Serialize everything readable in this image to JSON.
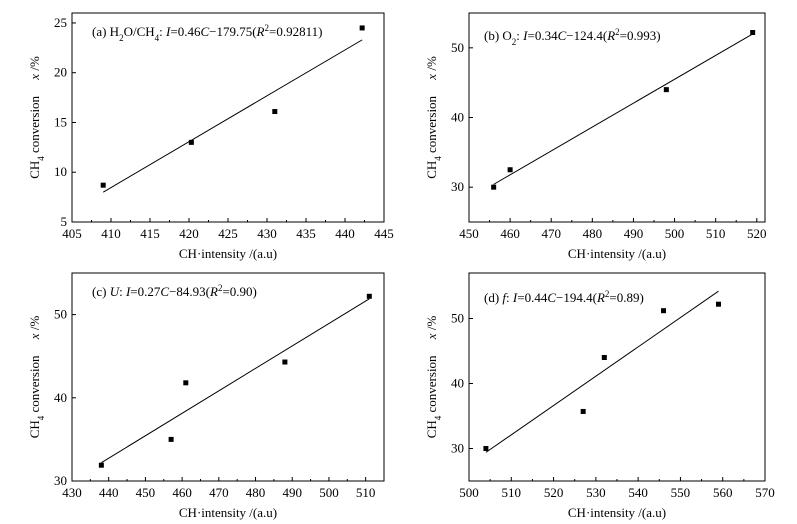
{
  "chart_data": [
    {
      "type": "scatter",
      "panel": "(a)",
      "annotation_parts": [
        {
          "t": "(a)  H",
          "s": "n"
        },
        {
          "t": "2",
          "s": "sub"
        },
        {
          "t": "O/CH",
          "s": "n"
        },
        {
          "t": "4",
          "s": "sub"
        },
        {
          "t": ": ",
          "s": "n"
        },
        {
          "t": "I",
          "s": "i"
        },
        {
          "t": "=0.46",
          "s": "n"
        },
        {
          "t": "C",
          "s": "i"
        },
        {
          "t": "−179.75(",
          "s": "n"
        },
        {
          "t": "R",
          "s": "i"
        },
        {
          "t": "2",
          "s": "sup"
        },
        {
          "t": "=0.92811)",
          "s": "n"
        }
      ],
      "xlabel": "CH·intensity /(a.u)",
      "ylabel": "CH4 conversion   x /%",
      "xlim": [
        405,
        445
      ],
      "ylim": [
        5,
        26
      ],
      "xticks": [
        405,
        410,
        415,
        420,
        425,
        430,
        435,
        440,
        445
      ],
      "yticks": [
        5,
        10,
        15,
        20,
        25
      ],
      "points": [
        [
          409,
          8.7
        ],
        [
          420.3,
          13.0
        ],
        [
          431,
          16.1
        ],
        [
          442.2,
          24.5
        ]
      ],
      "fit_line": [
        [
          409,
          8.0
        ],
        [
          442.2,
          23.3
        ]
      ]
    },
    {
      "type": "scatter",
      "panel": "(b)",
      "annotation_parts": [
        {
          "t": "(b)  O",
          "s": "n"
        },
        {
          "t": "2",
          "s": "sub"
        },
        {
          "t": ": ",
          "s": "n"
        },
        {
          "t": "I",
          "s": "i"
        },
        {
          "t": "=0.34",
          "s": "n"
        },
        {
          "t": "C",
          "s": "i"
        },
        {
          "t": "−124.4(",
          "s": "n"
        },
        {
          "t": "R",
          "s": "i"
        },
        {
          "t": "2",
          "s": "sup"
        },
        {
          "t": "=0.993)",
          "s": "n"
        }
      ],
      "xlabel": "CH·intensity /(a.u)",
      "ylabel": "CH4 conversion   x /%",
      "xlim": [
        450,
        522
      ],
      "ylim": [
        25,
        55
      ],
      "xticks": [
        450,
        460,
        470,
        480,
        490,
        500,
        510,
        520
      ],
      "yticks": [
        30,
        40,
        50
      ],
      "points": [
        [
          456,
          30.0
        ],
        [
          460,
          32.5
        ],
        [
          498,
          44.0
        ],
        [
          519,
          52.2
        ]
      ],
      "fit_line": [
        [
          456,
          30.4
        ],
        [
          519,
          52.0
        ]
      ]
    },
    {
      "type": "scatter",
      "panel": "(c)",
      "annotation_parts": [
        {
          "t": "(c)  ",
          "s": "n"
        },
        {
          "t": "U",
          "s": "i"
        },
        {
          "t": ": ",
          "s": "n"
        },
        {
          "t": "I",
          "s": "i"
        },
        {
          "t": "=0.27",
          "s": "n"
        },
        {
          "t": "C",
          "s": "i"
        },
        {
          "t": "−84.93(",
          "s": "n"
        },
        {
          "t": "R",
          "s": "i"
        },
        {
          "t": "2",
          "s": "sup"
        },
        {
          "t": "=0.90)",
          "s": "n"
        }
      ],
      "xlabel": "CH·intensity /(a.u)",
      "ylabel": "CH4 conversion   x /%",
      "xlim": [
        430,
        515
      ],
      "ylim": [
        30,
        55
      ],
      "xticks": [
        430,
        440,
        450,
        460,
        470,
        480,
        490,
        500,
        510
      ],
      "yticks": [
        30,
        40,
        50
      ],
      "points": [
        [
          438,
          31.9
        ],
        [
          457,
          35.0
        ],
        [
          461,
          41.8
        ],
        [
          488,
          44.3
        ],
        [
          511,
          52.2
        ]
      ],
      "fit_line": [
        [
          438,
          32.2
        ],
        [
          511,
          51.9
        ]
      ]
    },
    {
      "type": "scatter",
      "panel": "(d)",
      "annotation_parts": [
        {
          "t": "(d)  ",
          "s": "n"
        },
        {
          "t": "f",
          "s": "i"
        },
        {
          "t": ": ",
          "s": "n"
        },
        {
          "t": "I",
          "s": "i"
        },
        {
          "t": "=0.44",
          "s": "n"
        },
        {
          "t": "C",
          "s": "i"
        },
        {
          "t": "−194.4(",
          "s": "n"
        },
        {
          "t": "R",
          "s": "i"
        },
        {
          "t": "2",
          "s": "sup"
        },
        {
          "t": "=0.89)",
          "s": "n"
        }
      ],
      "xlabel": "CH·intensity /(a.u)",
      "ylabel": "CH4 conversion   x /%",
      "xlim": [
        500,
        570
      ],
      "ylim": [
        25,
        57
      ],
      "xticks": [
        500,
        510,
        520,
        530,
        540,
        550,
        560,
        570
      ],
      "yticks": [
        30,
        40,
        50
      ],
      "points": [
        [
          504,
          30.0
        ],
        [
          527,
          35.7
        ],
        [
          532,
          44.0
        ],
        [
          546,
          51.2
        ],
        [
          559,
          52.2
        ]
      ],
      "fit_line": [
        [
          504,
          29.4
        ],
        [
          559,
          54.2
        ]
      ]
    }
  ]
}
